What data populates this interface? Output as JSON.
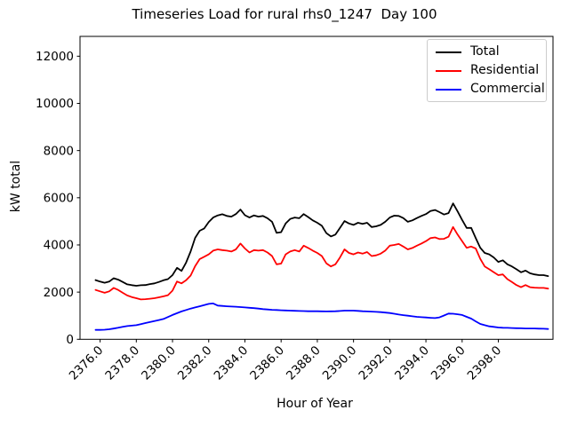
{
  "title": "Timeseries Load for rural rhs0_1247  Day 100",
  "axes": {
    "xlabel": "Hour of Year",
    "ylabel": "kW total"
  },
  "legend": {
    "position": "upper right",
    "entries": [
      {
        "label": "Total",
        "color": "#000000"
      },
      {
        "label": "Residential",
        "color": "#ff0000"
      },
      {
        "label": "Commercial",
        "color": "#0000ff"
      }
    ]
  },
  "chart_data": {
    "type": "line",
    "title": "Timeseries Load for rural rhs0_1247  Day 100",
    "xlabel": "Hour of Year",
    "ylabel": "kW total",
    "grid": false,
    "legend_position": "upper right",
    "xlim": [
      2374.89,
      2401.02
    ],
    "ylim": [
      0,
      12840
    ],
    "x_ticks": [
      2376,
      2378,
      2380,
      2382,
      2384,
      2386,
      2388,
      2390,
      2392,
      2394,
      2396,
      2398
    ],
    "x_tick_labels": [
      "2376.0",
      "2378.0",
      "2380.0",
      "2382.0",
      "2384.0",
      "2386.0",
      "2388.0",
      "2390.0",
      "2392.0",
      "2394.0",
      "2396.0",
      "2398.0"
    ],
    "y_ticks": [
      0,
      2000,
      4000,
      6000,
      8000,
      10000,
      12000
    ],
    "y_tick_labels": [
      "0",
      "2000",
      "4000",
      "6000",
      "8000",
      "10000",
      "12000"
    ],
    "x": [
      2375.75,
      2376.0,
      2376.25,
      2376.5,
      2376.75,
      2377.0,
      2377.25,
      2377.5,
      2377.75,
      2378.0,
      2378.25,
      2378.5,
      2378.75,
      2379.0,
      2379.25,
      2379.5,
      2379.75,
      2380.0,
      2380.25,
      2380.5,
      2380.75,
      2381.0,
      2381.25,
      2381.5,
      2381.75,
      2382.0,
      2382.25,
      2382.5,
      2382.75,
      2383.0,
      2383.25,
      2383.5,
      2383.75,
      2384.0,
      2384.25,
      2384.5,
      2384.75,
      2385.0,
      2385.25,
      2385.5,
      2385.75,
      2386.0,
      2386.25,
      2386.5,
      2386.75,
      2387.0,
      2387.25,
      2387.5,
      2387.75,
      2388.0,
      2388.25,
      2388.5,
      2388.75,
      2389.0,
      2389.25,
      2389.5,
      2389.75,
      2390.0,
      2390.25,
      2390.5,
      2390.75,
      2391.0,
      2391.25,
      2391.5,
      2391.75,
      2392.0,
      2392.25,
      2392.5,
      2392.75,
      2393.0,
      2393.25,
      2393.5,
      2393.75,
      2394.0,
      2394.25,
      2394.5,
      2394.75,
      2395.0,
      2395.25,
      2395.5,
      2395.75,
      2396.0,
      2396.25,
      2396.5,
      2396.75,
      2397.0,
      2397.25,
      2397.5,
      2397.75,
      2398.0,
      2398.25,
      2398.5,
      2398.75,
      2399.0,
      2399.25,
      2399.5,
      2399.75,
      2400.0,
      2400.25,
      2400.5,
      2400.75
    ],
    "series": [
      {
        "name": "Total",
        "color": "#000000",
        "values": [
          2510,
          2445,
          2395,
          2445,
          2590,
          2530,
          2430,
          2330,
          2295,
          2270,
          2290,
          2300,
          2340,
          2370,
          2430,
          2500,
          2550,
          2720,
          3030,
          2900,
          3250,
          3720,
          4300,
          4600,
          4700,
          4975,
          5160,
          5250,
          5300,
          5230,
          5200,
          5310,
          5500,
          5260,
          5160,
          5250,
          5200,
          5230,
          5130,
          4980,
          4510,
          4540,
          4910,
          5100,
          5160,
          5130,
          5310,
          5180,
          5040,
          4940,
          4810,
          4500,
          4360,
          4440,
          4720,
          5010,
          4910,
          4850,
          4940,
          4890,
          4940,
          4760,
          4790,
          4850,
          4980,
          5160,
          5240,
          5230,
          5140,
          4980,
          5040,
          5140,
          5230,
          5310,
          5440,
          5480,
          5390,
          5290,
          5350,
          5760,
          5420,
          5060,
          4720,
          4720,
          4290,
          3880,
          3660,
          3600,
          3470,
          3280,
          3350,
          3180,
          3090,
          2970,
          2840,
          2910,
          2800,
          2750,
          2720,
          2720,
          2680
        ]
      },
      {
        "name": "Residential",
        "color": "#ff0000",
        "values": [
          2090,
          2030,
          1970,
          2030,
          2180,
          2090,
          1970,
          1860,
          1790,
          1740,
          1690,
          1700,
          1720,
          1740,
          1780,
          1820,
          1870,
          2060,
          2450,
          2370,
          2500,
          2700,
          3100,
          3400,
          3500,
          3600,
          3760,
          3810,
          3780,
          3760,
          3720,
          3810,
          4060,
          3850,
          3680,
          3780,
          3760,
          3780,
          3680,
          3530,
          3180,
          3210,
          3600,
          3720,
          3780,
          3720,
          3970,
          3870,
          3760,
          3660,
          3530,
          3220,
          3090,
          3180,
          3470,
          3810,
          3660,
          3600,
          3680,
          3630,
          3700,
          3530,
          3560,
          3630,
          3760,
          3970,
          4000,
          4040,
          3930,
          3810,
          3870,
          3970,
          4060,
          4160,
          4290,
          4320,
          4250,
          4260,
          4350,
          4760,
          4440,
          4160,
          3880,
          3930,
          3850,
          3410,
          3090,
          2970,
          2840,
          2720,
          2750,
          2550,
          2430,
          2300,
          2210,
          2300,
          2210,
          2190,
          2180,
          2180,
          2150
        ]
      },
      {
        "name": "Commercial",
        "color": "#0000ff",
        "values": [
          400,
          400,
          405,
          425,
          455,
          490,
          525,
          560,
          580,
          600,
          645,
          690,
          730,
          775,
          815,
          860,
          945,
          1030,
          1105,
          1180,
          1240,
          1300,
          1350,
          1400,
          1450,
          1500,
          1520,
          1430,
          1415,
          1400,
          1390,
          1380,
          1365,
          1350,
          1335,
          1320,
          1300,
          1280,
          1265,
          1250,
          1240,
          1230,
          1222,
          1215,
          1207,
          1200,
          1195,
          1190,
          1190,
          1190,
          1185,
          1180,
          1185,
          1190,
          1200,
          1215,
          1215,
          1215,
          1205,
          1190,
          1182,
          1175,
          1162,
          1150,
          1132,
          1115,
          1082,
          1050,
          1025,
          1000,
          975,
          950,
          937,
          925,
          912,
          900,
          930,
          1010,
          1090,
          1085,
          1060,
          1030,
          950,
          875,
          760,
          650,
          600,
          550,
          525,
          500,
          490,
          485,
          478,
          470,
          465,
          460,
          460,
          460,
          453,
          447,
          435
        ]
      }
    ]
  },
  "style": {
    "frame_color": "#000000",
    "legend_border_color": "#cccccc",
    "background": "#ffffff"
  }
}
